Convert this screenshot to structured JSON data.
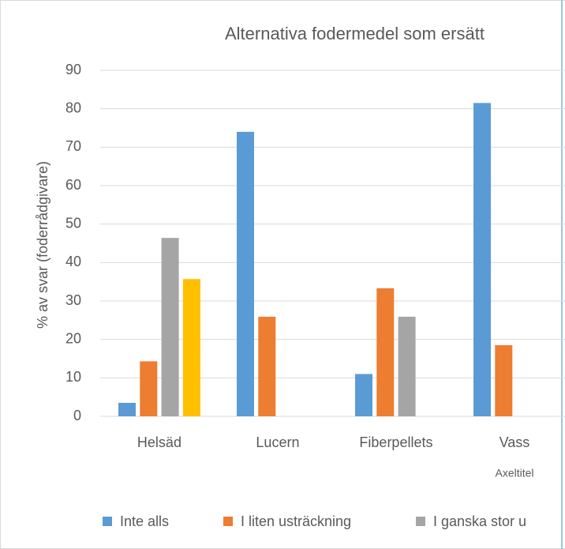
{
  "chart_data": {
    "type": "bar",
    "title": "Alternativa fodermedel som ersätt",
    "x_label": "Axeltitel",
    "y_label": "% av svar (foderrådgivare)",
    "categories": [
      "Helsäd",
      "Lucern",
      "Fiberpellets",
      "Vass"
    ],
    "series": [
      {
        "name": "Inte alls",
        "color": "#5b9bd5",
        "values": [
          3.5,
          74,
          11,
          81.5
        ]
      },
      {
        "name": "I liten usträckning",
        "color": "#ed7d31",
        "values": [
          14.3,
          25.9,
          33.3,
          18.5
        ]
      },
      {
        "name": "I ganska stor u",
        "color": "#a5a5a5",
        "values": [
          46.4,
          0,
          25.9,
          0
        ]
      },
      {
        "color": "#ffc000",
        "values": [
          35.7,
          0,
          0,
          0
        ]
      }
    ],
    "ylim": [
      0,
      90
    ],
    "yticks": [
      0,
      10,
      20,
      30,
      40,
      50,
      60,
      70,
      80,
      90
    ],
    "grid": true,
    "legend": "bottom"
  }
}
